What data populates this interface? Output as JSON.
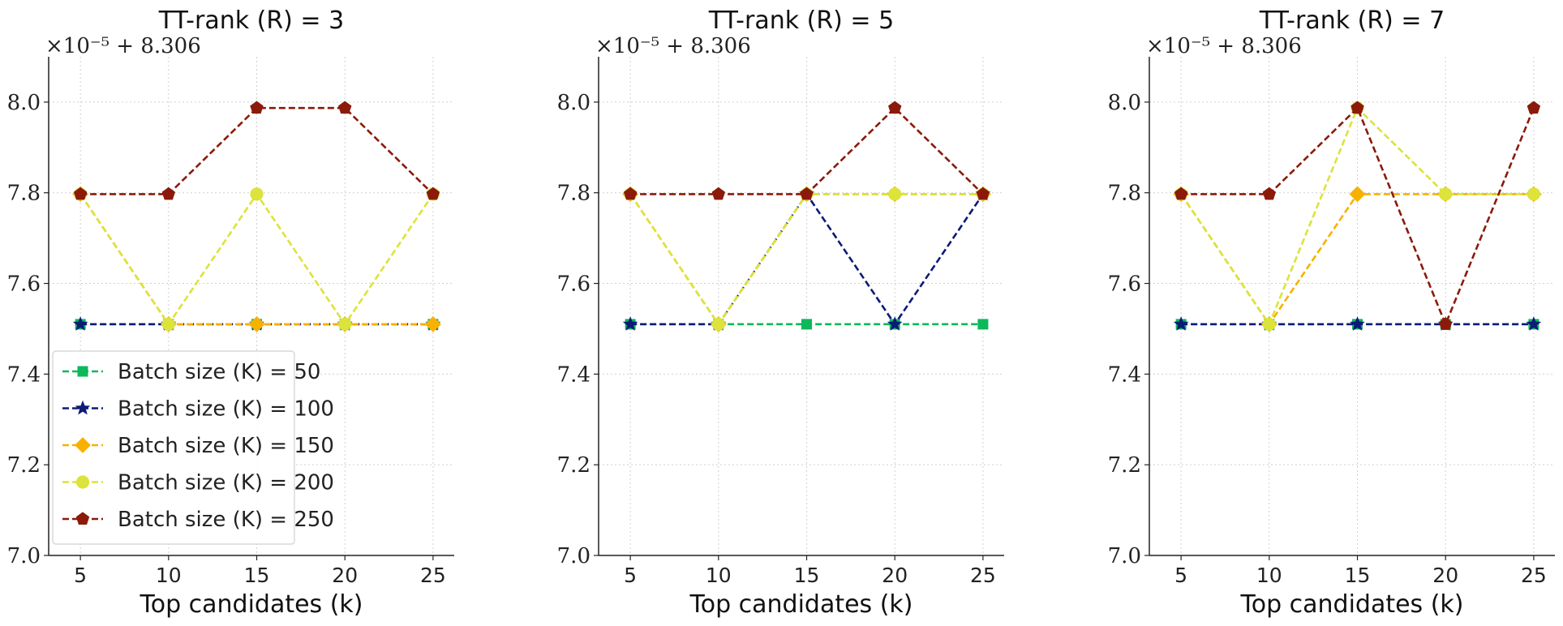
{
  "chart_data": [
    {
      "type": "line",
      "title": "TT-rank (R) = 3",
      "offset_label": "×10⁻⁵ + 8.306",
      "xlabel": "Top candidates (k)",
      "ylabel": "",
      "x": [
        5,
        10,
        15,
        20,
        25
      ],
      "xticks": [
        "5",
        "10",
        "15",
        "20",
        "25"
      ],
      "ylim": [
        7.0,
        8.1
      ],
      "yticks": [
        "7.0",
        "7.2",
        "7.4",
        "7.6",
        "7.8",
        "8.0"
      ],
      "grid": true,
      "legend": "lower-left",
      "series": [
        {
          "name": "Batch size (K) = 50",
          "values": [
            7.51,
            7.51,
            7.51,
            7.51,
            7.51
          ],
          "color": "#0db85a",
          "marker": "square"
        },
        {
          "name": "Batch size (K) = 100",
          "values": [
            7.51,
            7.51,
            7.51,
            7.51,
            7.51
          ],
          "color": "#0c1a78",
          "marker": "star"
        },
        {
          "name": "Batch size (K) = 150",
          "values": [
            7.797,
            7.51,
            7.51,
            7.51,
            7.51
          ],
          "color": "#f7b100",
          "marker": "diamond"
        },
        {
          "name": "Batch size (K) = 200",
          "values": [
            7.797,
            7.51,
            7.797,
            7.51,
            7.797
          ],
          "color": "#dce33a",
          "marker": "circle"
        },
        {
          "name": "Batch size (K) = 250",
          "values": [
            7.797,
            7.797,
            7.987,
            7.987,
            7.797
          ],
          "color": "#8b1a0a",
          "marker": "pentagon"
        }
      ]
    },
    {
      "type": "line",
      "title": "TT-rank (R) = 5",
      "offset_label": "×10⁻⁵ + 8.306",
      "xlabel": "Top candidates (k)",
      "ylabel": "",
      "x": [
        5,
        10,
        15,
        20,
        25
      ],
      "xticks": [
        "5",
        "10",
        "15",
        "20",
        "25"
      ],
      "ylim": [
        7.0,
        8.1
      ],
      "yticks": [
        "7.0",
        "7.2",
        "7.4",
        "7.6",
        "7.8",
        "8.0"
      ],
      "grid": true,
      "series": [
        {
          "name": "Batch size (K) = 50",
          "values": [
            7.51,
            7.51,
            7.51,
            7.51,
            7.51
          ],
          "color": "#0db85a",
          "marker": "square"
        },
        {
          "name": "Batch size (K) = 100",
          "values": [
            7.51,
            7.51,
            7.797,
            7.51,
            7.797
          ],
          "color": "#0c1a78",
          "marker": "star"
        },
        {
          "name": "Batch size (K) = 150",
          "values": [
            7.797,
            7.51,
            7.797,
            7.797,
            7.797
          ],
          "color": "#f7b100",
          "marker": "diamond"
        },
        {
          "name": "Batch size (K) = 200",
          "values": [
            7.797,
            7.51,
            7.797,
            7.797,
            7.797
          ],
          "color": "#dce33a",
          "marker": "circle"
        },
        {
          "name": "Batch size (K) = 250",
          "values": [
            7.797,
            7.797,
            7.797,
            7.987,
            7.797
          ],
          "color": "#8b1a0a",
          "marker": "pentagon"
        }
      ]
    },
    {
      "type": "line",
      "title": "TT-rank (R) = 7",
      "offset_label": "×10⁻⁵ + 8.306",
      "xlabel": "Top candidates (k)",
      "ylabel": "",
      "x": [
        5,
        10,
        15,
        20,
        25
      ],
      "xticks": [
        "5",
        "10",
        "15",
        "20",
        "25"
      ],
      "ylim": [
        7.0,
        8.1
      ],
      "yticks": [
        "7.0",
        "7.2",
        "7.4",
        "7.6",
        "7.8",
        "8.0"
      ],
      "grid": true,
      "series": [
        {
          "name": "Batch size (K) = 50",
          "values": [
            7.51,
            7.51,
            7.51,
            7.51,
            7.51
          ],
          "color": "#0db85a",
          "marker": "square"
        },
        {
          "name": "Batch size (K) = 100",
          "values": [
            7.51,
            7.51,
            7.51,
            7.51,
            7.51
          ],
          "color": "#0c1a78",
          "marker": "star"
        },
        {
          "name": "Batch size (K) = 150",
          "values": [
            7.797,
            7.51,
            7.797,
            7.797,
            7.797
          ],
          "color": "#f7b100",
          "marker": "diamond"
        },
        {
          "name": "Batch size (K) = 200",
          "values": [
            7.797,
            7.51,
            7.987,
            7.797,
            7.797
          ],
          "color": "#dce33a",
          "marker": "circle"
        },
        {
          "name": "Batch size (K) = 250",
          "values": [
            7.797,
            7.797,
            7.987,
            7.51,
            7.987
          ],
          "color": "#8b1a0a",
          "marker": "pentagon"
        }
      ]
    }
  ]
}
